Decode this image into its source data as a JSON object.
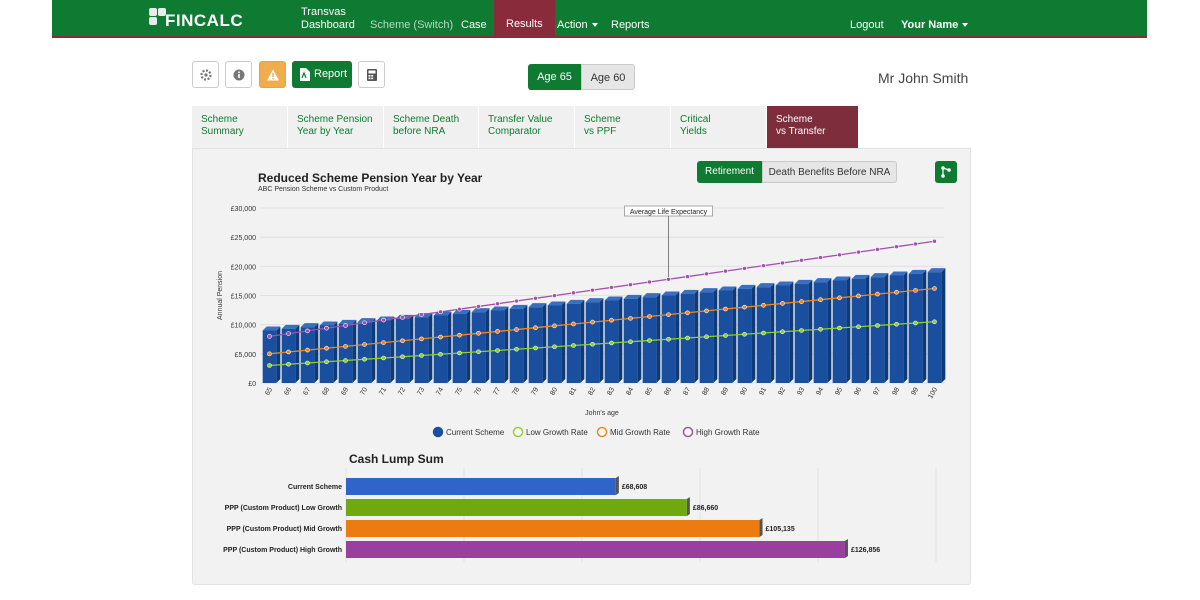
{
  "header": {
    "logo_text": "FINCALC",
    "nav": {
      "transvas_line1": "Transvas",
      "transvas_line2": "Dashboard",
      "scheme_switch": "Scheme (Switch)",
      "case": "Case",
      "results": "Results",
      "action": "Action",
      "reports": "Reports",
      "logout": "Logout",
      "user": "Your Name"
    }
  },
  "toolbar": {
    "settings_icon": "gear-icon",
    "info_icon": "info-icon",
    "warning_icon": "warning-icon",
    "report_label": "Report",
    "calculator_icon": "calculator-icon",
    "age_options": [
      "Age 65",
      "Age 60"
    ],
    "selected_age": "Age 65",
    "client_name": "Mr John Smith"
  },
  "tabs": [
    {
      "line1": "Scheme",
      "line2": "Summary"
    },
    {
      "line1": "Scheme Pension",
      "line2": "Year by Year"
    },
    {
      "line1": "Scheme Death",
      "line2": "before NRA"
    },
    {
      "line1": "Transfer Value",
      "line2": "Comparator"
    },
    {
      "line1": "Scheme",
      "line2": "vs PPF"
    },
    {
      "line1": "Critical",
      "line2": "Yields"
    },
    {
      "line1": "Scheme",
      "line2": "vs Transfer"
    }
  ],
  "active_tab": "Scheme vs Transfer",
  "view_toggle": {
    "retirement": "Retirement",
    "death_benefits": "Death Benefits Before NRA",
    "selected": "Retirement"
  },
  "colors": {
    "brand_green": "#0f7a32",
    "maroon": "#8a2b3b",
    "current": "#1a4fa0",
    "low": "#8ed12a",
    "mid": "#f0861f",
    "high": "#a24fae"
  },
  "chart_data": [
    {
      "type": "bar",
      "title": "Reduced Scheme Pension Year by Year",
      "subtitle": "ABC Pension Scheme vs Custom Product",
      "xlabel": "John's age",
      "ylabel": "Annual Pension",
      "ylim": [
        0,
        30000
      ],
      "y_ticks": [
        "£0",
        "£5,000",
        "£10,000",
        "£15,000",
        "£20,000",
        "£25,000",
        "£30,000"
      ],
      "categories": [
        "65",
        "66",
        "67",
        "68",
        "69",
        "70",
        "71",
        "72",
        "73",
        "74",
        "75",
        "76",
        "77",
        "78",
        "79",
        "80",
        "81",
        "82",
        "83",
        "84",
        "85",
        "86",
        "87",
        "88",
        "89",
        "90",
        "91",
        "92",
        "93",
        "94",
        "95",
        "96",
        "97",
        "98",
        "99",
        "100"
      ],
      "series": [
        {
          "name": "Current Scheme",
          "type": "bar",
          "start": 9000,
          "end": 19000
        },
        {
          "name": "Low Growth Rate",
          "type": "line",
          "start": 3000,
          "end": 10500
        },
        {
          "name": "Mid Growth Rate",
          "type": "line",
          "start": 5000,
          "end": 16200
        },
        {
          "name": "High Growth Rate",
          "type": "line",
          "start": 8000,
          "end": 24300
        }
      ],
      "annotation": {
        "label": "Average Life Expectancy",
        "x": "86"
      },
      "grid": true,
      "legend": "bottom"
    },
    {
      "type": "bar",
      "orientation": "horizontal",
      "title": "Cash Lump Sum",
      "categories": [
        "Current Scheme",
        "PPP (Custom Product) Low Growth",
        "PPP (Custom Product) Mid Growth",
        "PPP (Custom Product) High Growth"
      ],
      "values": [
        68608,
        86660,
        105135,
        126856
      ],
      "value_labels": [
        "£68,608",
        "£86,660",
        "£105,135",
        "£126,856"
      ]
    }
  ]
}
